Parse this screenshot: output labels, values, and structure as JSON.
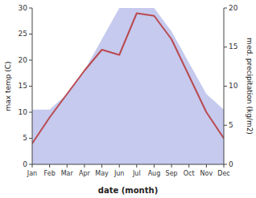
{
  "chart_data": {
    "type": "line",
    "categories": [
      "Jan",
      "Feb",
      "Mar",
      "Apr",
      "May",
      "Jun",
      "Jul",
      "Aug",
      "Sep",
      "Oct",
      "Nov",
      "Dec"
    ],
    "xlabel": "date (month)",
    "ylabel": "max temp (C)",
    "y2label": "med. precipitation (kg/m2)",
    "ylim": [
      0,
      30
    ],
    "yticks": [
      0,
      5,
      10,
      15,
      20,
      25,
      30
    ],
    "y2lim": [
      0,
      20
    ],
    "y2ticks": [
      0,
      5,
      10,
      15,
      20
    ],
    "series": [
      {
        "type": "area",
        "axis": "y2",
        "color": "#c5caee",
        "values": [
          7,
          7,
          9,
          12,
          16,
          20,
          20,
          20,
          17,
          13,
          9,
          7
        ]
      },
      {
        "type": "line",
        "color": "#b94a50",
        "values": [
          4,
          9,
          13.5,
          18,
          22,
          21,
          29,
          28.5,
          24,
          17,
          10,
          5
        ]
      }
    ]
  }
}
